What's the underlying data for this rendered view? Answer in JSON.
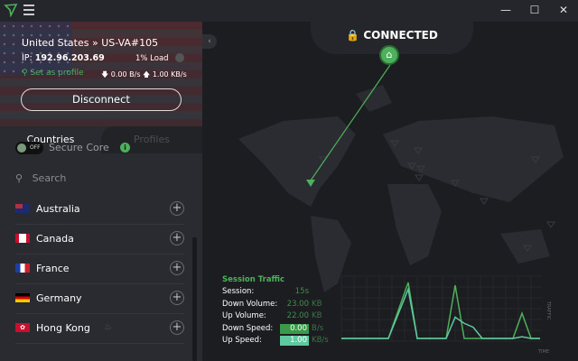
{
  "app": {
    "window_controls": {
      "minimize": "—",
      "maximize": "☐",
      "close": "✕"
    }
  },
  "connection": {
    "server": "United States » US-VA#105",
    "ip_label": "IP:",
    "ip": "192.96.203.69",
    "load": "1% Load",
    "set_profile": "Set as profile",
    "down_rate": "0.00 B/s",
    "up_rate": "1.00 KB/s",
    "disconnect": "Disconnect",
    "status": "CONNECTED"
  },
  "tabs": [
    {
      "label": "Countries",
      "active": true
    },
    {
      "label": "Profiles",
      "active": false
    }
  ],
  "secure_core": {
    "label": "Secure Core",
    "toggle": "OFF",
    "info": "i"
  },
  "search": {
    "placeholder": "Search"
  },
  "countries": [
    {
      "name": "Australia",
      "flag": "au"
    },
    {
      "name": "Canada",
      "flag": "ca"
    },
    {
      "name": "France",
      "flag": "fr"
    },
    {
      "name": "Germany",
      "flag": "de"
    },
    {
      "name": "Hong Kong",
      "flag": "hk"
    }
  ],
  "session": {
    "title": "Session Traffic",
    "session_label": "Session:",
    "session": "15s",
    "down_volume_label": "Down Volume:",
    "down_volume": "23.00",
    "down_volume_unit": "KB",
    "up_volume_label": "Up Volume:",
    "up_volume": "22.00",
    "up_volume_unit": "KB",
    "down_speed_label": "Down Speed:",
    "down_speed": "0.00",
    "down_speed_unit": "B/s",
    "up_speed_label": "Up Speed:",
    "up_speed": "1.00",
    "up_speed_unit": "KB/s"
  },
  "colors": {
    "accent": "#4cb15a",
    "up": "#5fc9a0"
  },
  "chart_data": {
    "type": "line",
    "xlabel": "TIME",
    "ylabel": "TRAFFIC",
    "grid": true,
    "series": [
      {
        "key": "down",
        "points": [
          [
            0,
            0
          ],
          [
            5.2,
            0
          ],
          [
            7.4,
            1
          ],
          [
            8.4,
            0
          ],
          [
            11.6,
            0
          ],
          [
            12.6,
            0.95
          ],
          [
            13.6,
            0
          ],
          [
            19,
            0
          ],
          [
            20,
            0.45
          ],
          [
            21,
            0
          ],
          [
            22,
            0
          ]
        ]
      },
      {
        "key": "up",
        "points": [
          [
            0,
            0
          ],
          [
            5.2,
            0
          ],
          [
            7.4,
            0.88
          ],
          [
            8.4,
            0
          ],
          [
            11.6,
            0
          ],
          [
            12.6,
            0.38
          ],
          [
            13.6,
            0.27
          ],
          [
            14.6,
            0.2
          ],
          [
            15.6,
            0
          ],
          [
            19,
            0
          ],
          [
            20,
            0.03
          ],
          [
            21,
            0
          ],
          [
            22,
            0
          ]
        ]
      }
    ]
  }
}
